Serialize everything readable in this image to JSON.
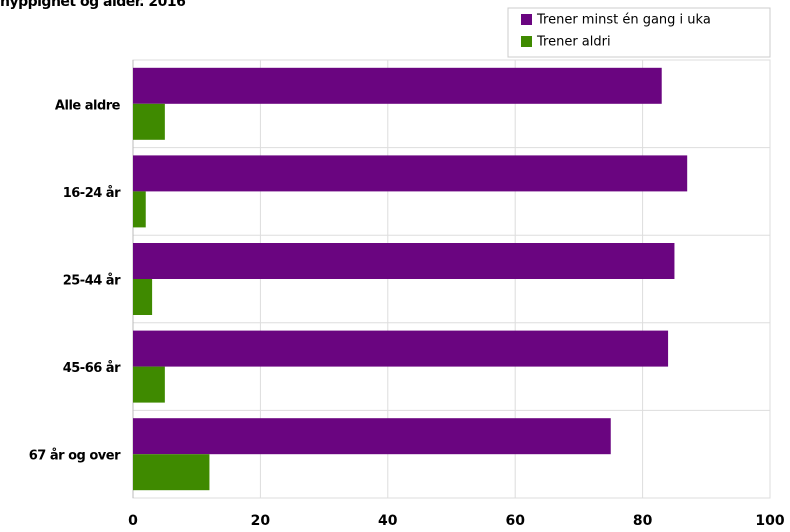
{
  "chart_data": {
    "type": "bar",
    "orientation": "horizontal",
    "title": "hyppighet og alder. 2016",
    "categories": [
      "Alle aldre",
      "16-24 år",
      "25-44 år",
      "45-66 år",
      "67 år og over"
    ],
    "series": [
      {
        "name": "Trener minst  én gang i uka",
        "color": "#6a0580",
        "values": [
          83,
          87,
          85,
          84,
          75
        ]
      },
      {
        "name": "Trener aldri",
        "color": "#3f8a00",
        "values": [
          5,
          2,
          3,
          5,
          12
        ]
      }
    ],
    "xlim": [
      0,
      100
    ],
    "xticks": [
      0,
      20,
      40,
      60,
      80,
      100
    ],
    "grid": true,
    "legend": "top-right"
  }
}
